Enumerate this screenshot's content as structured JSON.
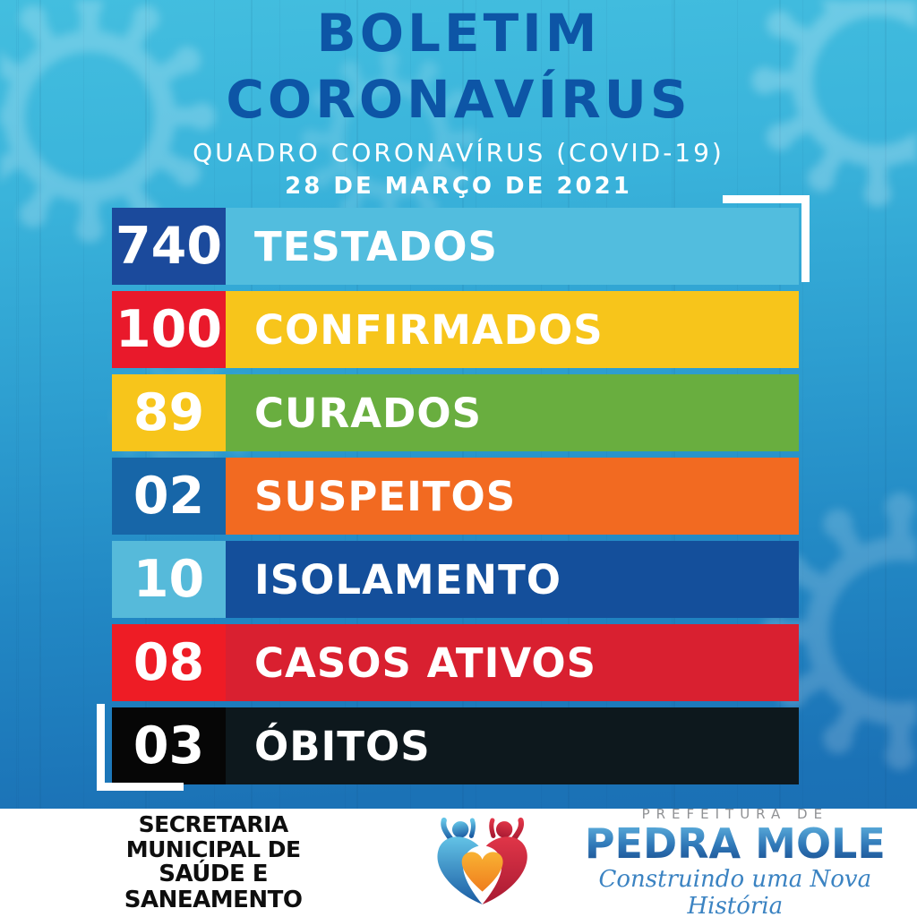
{
  "poster": {
    "header": {
      "title_line1": "BOLETIM",
      "title_line2": "CORONAVÍRUS",
      "subtitle": "QUADRO CORONAVÍRUS (COVID-19)",
      "date": "28 DE MARÇO DE 2021"
    },
    "stats": {
      "rows": [
        {
          "value": "740",
          "label": "TESTADOS",
          "value_bg": "#1b4a9c",
          "bar_bg": "#52bdde"
        },
        {
          "value": "100",
          "label": "CONFIRMADOS",
          "value_bg": "#e9192b",
          "bar_bg": "#f7c51b"
        },
        {
          "value": "89",
          "label": "CURADOS",
          "value_bg": "#f7c51b",
          "bar_bg": "#69ae3f"
        },
        {
          "value": "02",
          "label": "SUSPEITOS",
          "value_bg": "#1766a8",
          "bar_bg": "#f26a21"
        },
        {
          "value": "10",
          "label": "ISOLAMENTO",
          "value_bg": "#56bada",
          "bar_bg": "#144f9b"
        },
        {
          "value": "08",
          "label": "CASOS ATIVOS",
          "value_bg": "#ee1c25",
          "bar_bg": "#d92030"
        },
        {
          "value": "03",
          "label": "ÓBITOS",
          "value_bg": "#060606",
          "bar_bg": "#0d181d"
        }
      ]
    },
    "footer": {
      "department_line1": "SECRETARIA MUNICIPAL DE",
      "department_line2": "SAÚDE E SANEAMENTO",
      "logo": {
        "icon": "pedra-mole-heart-figures-icon",
        "overline": "PREFEITURA DE",
        "city": "PEDRA MOLE",
        "tagline": "Construindo uma Nova História"
      }
    },
    "colors": {
      "title_text": "#0d55a6",
      "subtitle_text": "#ffffff",
      "date_text": "#ffffff",
      "background_top": "#43bedf",
      "background_bottom": "#1a6cb2",
      "bracket": "#ffffff",
      "footer_background": "#ffffff",
      "department_text": "#0e0e0e",
      "logo_overline": "#8f9194",
      "logo_city_gradient_top": "#5fb1de",
      "logo_city_gradient_bottom": "#1a4f91",
      "logo_tagline": "#3b83c2",
      "logo_figure_left": "#2f8ec6",
      "logo_figure_right": "#c8243a",
      "logo_heart": "#f49a28",
      "watermark": "#ffffff"
    },
    "decor": {
      "watermark_icon": "coronavirus-silhouette"
    }
  }
}
